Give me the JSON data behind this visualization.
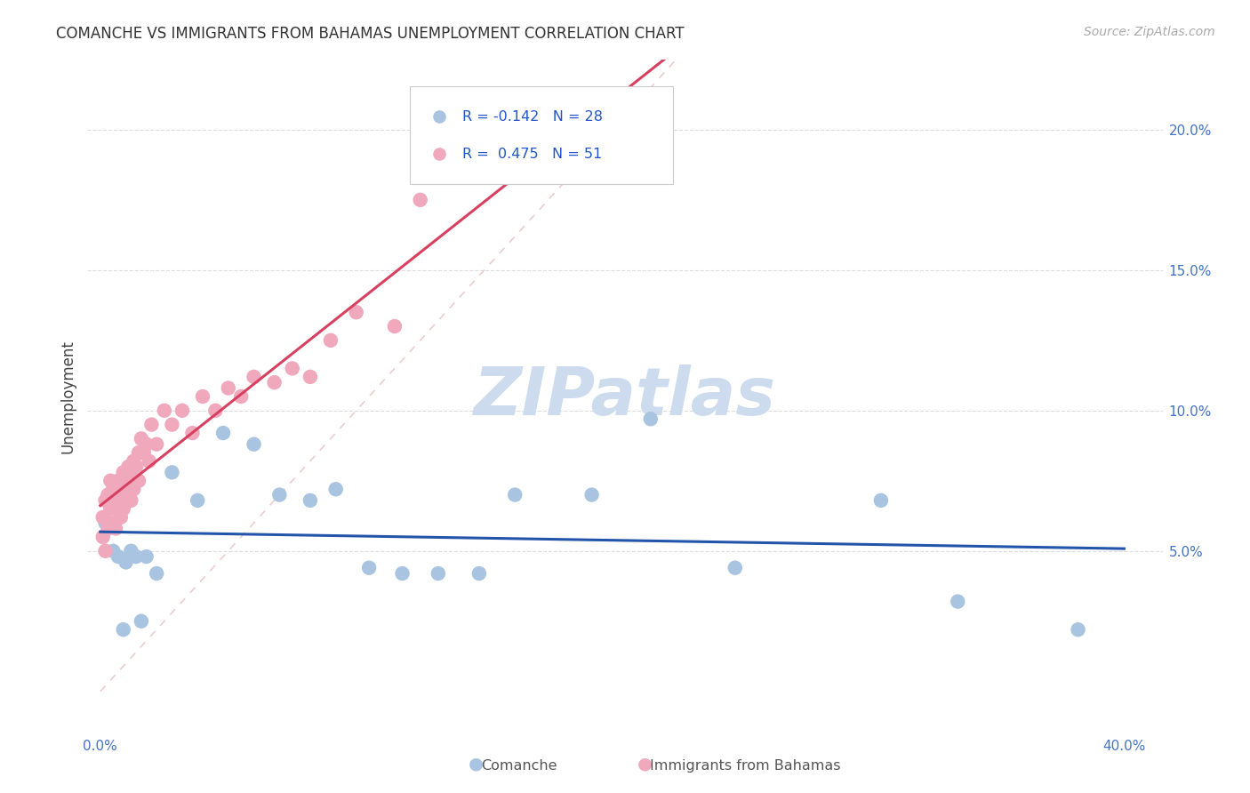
{
  "title": "COMANCHE VS IMMIGRANTS FROM BAHAMAS UNEMPLOYMENT CORRELATION CHART",
  "source": "Source: ZipAtlas.com",
  "ylabel": "Unemployment",
  "legend_r_blue": "-0.142",
  "legend_n_blue": "28",
  "legend_r_pink": "0.475",
  "legend_n_pink": "51",
  "blue_scatter_color": "#a8c4e0",
  "pink_scatter_color": "#f0a8bc",
  "blue_line_color": "#2255aa",
  "pink_line_color": "#d84060",
  "diagonal_color": "#e8c8cc",
  "watermark_color": "#ccdcee",
  "blue_x": [
    0.002,
    0.005,
    0.007,
    0.009,
    0.01,
    0.012,
    0.014,
    0.016,
    0.018,
    0.022,
    0.028,
    0.038,
    0.048,
    0.06,
    0.07,
    0.082,
    0.092,
    0.105,
    0.118,
    0.132,
    0.148,
    0.162,
    0.192,
    0.215,
    0.248,
    0.305,
    0.335,
    0.382
  ],
  "blue_y": [
    0.06,
    0.05,
    0.048,
    0.022,
    0.046,
    0.05,
    0.048,
    0.025,
    0.048,
    0.042,
    0.078,
    0.068,
    0.092,
    0.088,
    0.07,
    0.068,
    0.072,
    0.044,
    0.042,
    0.042,
    0.042,
    0.07,
    0.07,
    0.097,
    0.044,
    0.068,
    0.032,
    0.022
  ],
  "pink_x": [
    0.001,
    0.001,
    0.002,
    0.002,
    0.003,
    0.003,
    0.004,
    0.004,
    0.005,
    0.005,
    0.006,
    0.006,
    0.007,
    0.007,
    0.008,
    0.008,
    0.009,
    0.009,
    0.01,
    0.01,
    0.011,
    0.011,
    0.012,
    0.012,
    0.013,
    0.013,
    0.014,
    0.015,
    0.015,
    0.016,
    0.017,
    0.018,
    0.019,
    0.02,
    0.022,
    0.025,
    0.028,
    0.032,
    0.036,
    0.04,
    0.045,
    0.05,
    0.055,
    0.06,
    0.068,
    0.075,
    0.082,
    0.09,
    0.1,
    0.115,
    0.125
  ],
  "pink_y": [
    0.062,
    0.055,
    0.068,
    0.05,
    0.07,
    0.058,
    0.065,
    0.075,
    0.072,
    0.06,
    0.068,
    0.058,
    0.075,
    0.065,
    0.072,
    0.062,
    0.078,
    0.065,
    0.075,
    0.068,
    0.08,
    0.07,
    0.078,
    0.068,
    0.082,
    0.072,
    0.08,
    0.085,
    0.075,
    0.09,
    0.085,
    0.088,
    0.082,
    0.095,
    0.088,
    0.1,
    0.095,
    0.1,
    0.092,
    0.105,
    0.1,
    0.108,
    0.105,
    0.112,
    0.11,
    0.115,
    0.112,
    0.125,
    0.135,
    0.13,
    0.175
  ],
  "xlim": [
    -0.005,
    0.415
  ],
  "ylim": [
    -0.015,
    0.225
  ],
  "xtick_positions": [
    0.0,
    0.4
  ],
  "xtick_labels": [
    "0.0%",
    "40.0%"
  ],
  "ytick_positions": [
    0.05,
    0.1,
    0.15,
    0.2
  ],
  "ytick_labels": [
    "5.0%",
    "10.0%",
    "15.0%",
    "20.0%"
  ],
  "grid_color": "#dddddd",
  "tick_color": "#4472c4",
  "title_fontsize": 12,
  "tick_fontsize": 11
}
